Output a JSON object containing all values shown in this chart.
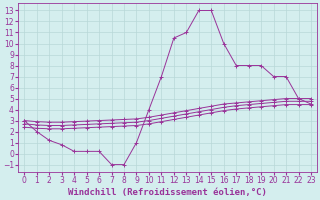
{
  "background_color": "#d4eeee",
  "grid_color": "#b8d8d8",
  "line_color": "#993399",
  "marker": "+",
  "xlabel": "Windchill (Refroidissement éolien,°C)",
  "xlabel_fontsize": 6.5,
  "tick_fontsize": 5.5,
  "xlim": [
    -0.5,
    23.5
  ],
  "ylim": [
    -1.7,
    13.7
  ],
  "xticks": [
    0,
    1,
    2,
    3,
    4,
    5,
    6,
    7,
    8,
    9,
    10,
    11,
    12,
    13,
    14,
    15,
    16,
    17,
    18,
    19,
    20,
    21,
    22,
    23
  ],
  "yticks": [
    -1,
    0,
    1,
    2,
    3,
    4,
    5,
    6,
    7,
    8,
    9,
    10,
    11,
    12,
    13
  ],
  "lines": [
    {
      "x": [
        0,
        1,
        2,
        3,
        4,
        5,
        6,
        7,
        8,
        9,
        10,
        11,
        12,
        13,
        14,
        15,
        16,
        17,
        18,
        19,
        20,
        21,
        22,
        23
      ],
      "y": [
        3,
        2,
        1.2,
        0.8,
        0.2,
        0.2,
        0.2,
        -1,
        -1,
        1,
        4,
        7,
        10.5,
        11,
        13,
        13,
        10,
        8,
        8,
        8,
        7,
        7,
        5,
        4.5
      ]
    },
    {
      "x": [
        0,
        1,
        2,
        3,
        4,
        5,
        6,
        7,
        8,
        9,
        10,
        11,
        12,
        13,
        14,
        15,
        16,
        17,
        18,
        19,
        20,
        21,
        22,
        23
      ],
      "y": [
        3.0,
        2.9,
        2.85,
        2.85,
        2.9,
        2.95,
        3.0,
        3.05,
        3.1,
        3.15,
        3.3,
        3.5,
        3.7,
        3.9,
        4.1,
        4.3,
        4.5,
        4.6,
        4.7,
        4.8,
        4.9,
        5.0,
        5.0,
        5.0
      ]
    },
    {
      "x": [
        0,
        1,
        2,
        3,
        4,
        5,
        6,
        7,
        8,
        9,
        10,
        11,
        12,
        13,
        14,
        15,
        16,
        17,
        18,
        19,
        20,
        21,
        22,
        23
      ],
      "y": [
        2.7,
        2.6,
        2.55,
        2.55,
        2.6,
        2.65,
        2.7,
        2.75,
        2.8,
        2.85,
        3.0,
        3.2,
        3.4,
        3.6,
        3.8,
        4.0,
        4.2,
        4.35,
        4.45,
        4.55,
        4.65,
        4.75,
        4.75,
        4.75
      ]
    },
    {
      "x": [
        0,
        1,
        2,
        3,
        4,
        5,
        6,
        7,
        8,
        9,
        10,
        11,
        12,
        13,
        14,
        15,
        16,
        17,
        18,
        19,
        20,
        21,
        22,
        23
      ],
      "y": [
        2.4,
        2.3,
        2.25,
        2.25,
        2.3,
        2.35,
        2.4,
        2.45,
        2.5,
        2.55,
        2.7,
        2.9,
        3.1,
        3.3,
        3.5,
        3.7,
        3.9,
        4.05,
        4.15,
        4.25,
        4.35,
        4.45,
        4.45,
        4.45
      ]
    }
  ]
}
